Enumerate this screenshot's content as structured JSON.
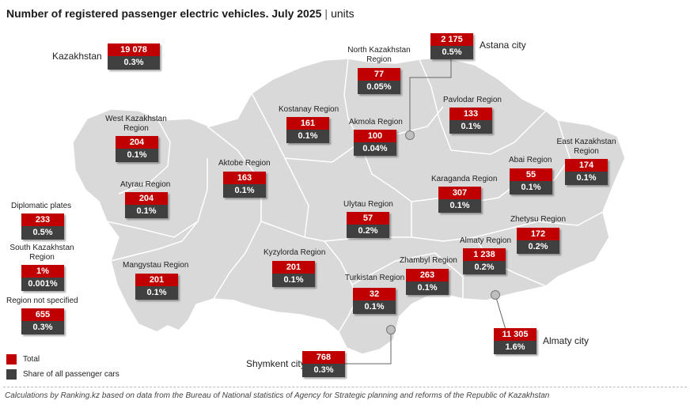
{
  "title": {
    "main": "Number of registered passenger electric vehicles. July 2025",
    "separator": "|",
    "unit": "units"
  },
  "colors": {
    "total": "#c00000",
    "share": "#404040",
    "land": "#d9d9d9",
    "border": "#ffffff"
  },
  "regions": {
    "kazakhstan": {
      "label": "Kazakhstan",
      "total": "19 078",
      "share": "0.3%"
    },
    "astana": {
      "label": "Astana city",
      "total": "2 175",
      "share": "0.5%"
    },
    "north_kaz": {
      "label1": "North Kazakhstan",
      "label2": "Region",
      "total": "77",
      "share": "0.05%"
    },
    "kostanay": {
      "label": "Kostanay Region",
      "total": "161",
      "share": "0.1%"
    },
    "akmola": {
      "label": "Akmola Region",
      "total": "100",
      "share": "0.04%"
    },
    "pavlodar": {
      "label": "Pavlodar Region",
      "total": "133",
      "share": "0.1%"
    },
    "west_kaz": {
      "label1": "West Kazakhstan",
      "label2": "Region",
      "total": "204",
      "share": "0.1%"
    },
    "east_kaz": {
      "label1": "East Kazakhstan",
      "label2": "Region",
      "total": "174",
      "share": "0.1%"
    },
    "aktobe": {
      "label": "Aktobe Region",
      "total": "163",
      "share": "0.1%"
    },
    "abai": {
      "label": "Abai Region",
      "total": "55",
      "share": "0.1%"
    },
    "karaganda": {
      "label": "Karaganda Region",
      "total": "307",
      "share": "0.1%"
    },
    "atyrau": {
      "label": "Atyrau Region",
      "total": "204",
      "share": "0.1%"
    },
    "ulytau": {
      "label": "Ulytau Region",
      "total": "57",
      "share": "0.2%"
    },
    "zhetysu": {
      "label": "Zhetysu Region",
      "total": "172",
      "share": "0.2%"
    },
    "diplomatic": {
      "label": "Diplomatic plates",
      "total": "233",
      "share": "0.5%"
    },
    "almaty_reg": {
      "label": "Almaty Region",
      "total": "1 238",
      "share": "0.2%"
    },
    "south_kaz": {
      "label1": "South Kazakhstan",
      "label2": "Region",
      "total": "1%",
      "share": "0.001%"
    },
    "kyzylorda": {
      "label": "Kyzylorda Region",
      "total": "201",
      "share": "0.1%"
    },
    "zhambyl": {
      "label": "Zhambyl Region",
      "total": "263",
      "share": "0.1%"
    },
    "mangystau": {
      "label": "Mangystau Region",
      "total": "201",
      "share": "0.1%"
    },
    "turkistan": {
      "label": "Turkistan Region",
      "total": "32",
      "share": "0.1%"
    },
    "not_specified": {
      "label": "Region not specified",
      "total": "655",
      "share": "0.3%"
    },
    "almaty_city": {
      "label": "Almaty city",
      "total": "11 305",
      "share": "1.6%"
    },
    "shymkent": {
      "label": "Shymkent city",
      "total": "768",
      "share": "0.3%"
    }
  },
  "legend": {
    "total": "Total",
    "share": "Share of all passenger cars"
  },
  "footer": "Calculations by Ranking.kz based on data from the Bureau of National statistics of Agency for Strategic planning and reforms of the Republic of Kazakhstan"
}
